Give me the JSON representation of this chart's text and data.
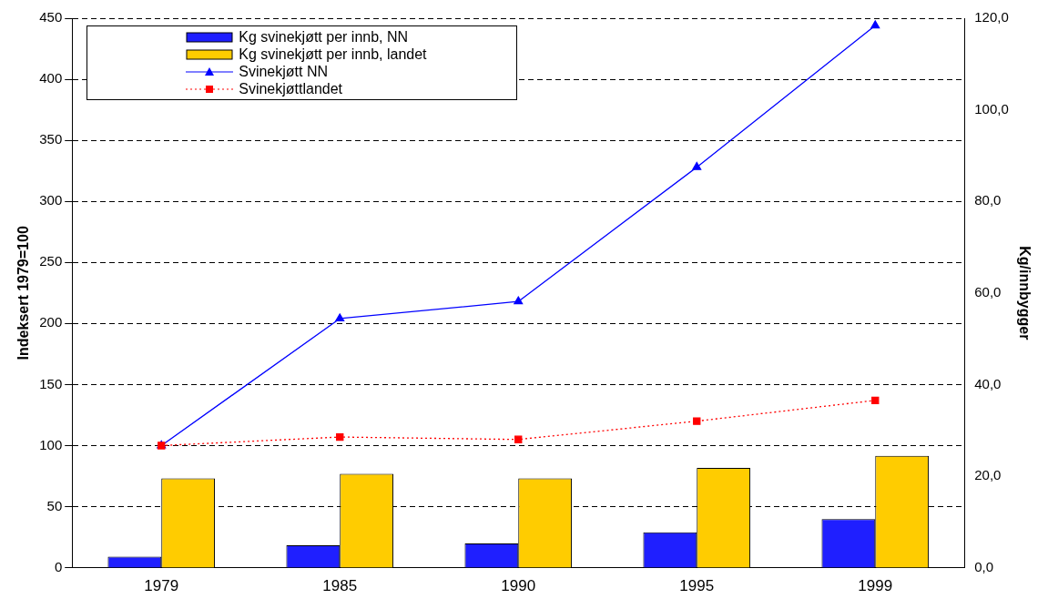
{
  "chart_data": {
    "type": "bar",
    "ylabel": "Indeksert 1979=100",
    "y2label": "Kg/innbygger",
    "categories": [
      "1979",
      "1985",
      "1990",
      "1995",
      "1999"
    ],
    "series": [
      {
        "name": "Kg svinekjøtt per innb, NN",
        "color": "#1f1fff",
        "axis": "y2",
        "values": [
          2.4,
          4.9,
          5.3,
          7.7,
          10.6
        ]
      },
      {
        "name": "Kg svinekjøtt per innb, landet",
        "color": "#ffcc00",
        "axis": "y2",
        "values": [
          19.5,
          20.5,
          19.5,
          21.8,
          24.4
        ]
      },
      {
        "name": "Svinekjøtt NN",
        "type": "line",
        "color": "#0000ff",
        "marker": "triangle",
        "line_style": "solid",
        "values": [
          100,
          204,
          218,
          328,
          444
        ]
      },
      {
        "name": "Svinekjøttlandet",
        "type": "line",
        "color": "#ff0000",
        "marker": "square",
        "line_style": "dotted",
        "values": [
          100,
          107,
          105,
          120,
          137
        ]
      }
    ],
    "ylim": [
      0,
      450
    ],
    "yticks": [
      0,
      50,
      100,
      150,
      200,
      250,
      300,
      350,
      400,
      450
    ],
    "y2lim": [
      0,
      120
    ],
    "y2ticks": [
      {
        "value": 0,
        "label": "0,0"
      },
      {
        "value": 20,
        "label": "20,0"
      },
      {
        "value": 40,
        "label": "40,0"
      },
      {
        "value": 60,
        "label": "60,0"
      },
      {
        "value": 80,
        "label": "80,0"
      },
      {
        "value": 100,
        "label": "100,0"
      },
      {
        "value": 120,
        "label": "120,0"
      }
    ],
    "grid": "y",
    "legend": "top left"
  }
}
